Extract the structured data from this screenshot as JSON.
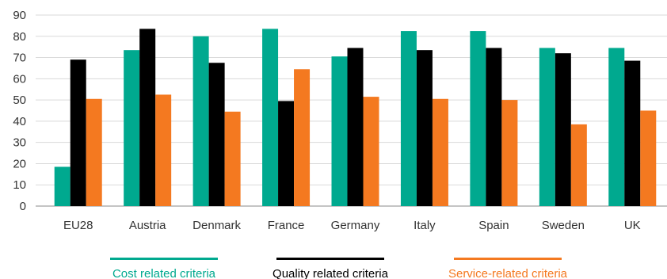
{
  "chart_data": {
    "type": "bar",
    "categories": [
      "EU28",
      "Austria",
      "Denmark",
      "France",
      "Germany",
      "Italy",
      "Spain",
      "Sweden",
      "UK"
    ],
    "series": [
      {
        "name": "Cost related criteria",
        "color": "#00a98f",
        "values": [
          18.5,
          73.5,
          80,
          83.5,
          70.5,
          82.5,
          82.5,
          74.5,
          74.5
        ]
      },
      {
        "name": "Quality related criteria",
        "color": "#000000",
        "values": [
          69,
          83.5,
          67.5,
          49.5,
          74.5,
          73.5,
          74.5,
          72,
          68.5
        ]
      },
      {
        "name": "Service-related criteria",
        "color": "#f47920",
        "values": [
          50.5,
          52.5,
          44.5,
          64.5,
          51.5,
          50.5,
          50,
          38.5,
          45
        ]
      }
    ],
    "yticks": [
      "0",
      "10",
      "20",
      "30",
      "40",
      "50",
      "60",
      "70",
      "80",
      "90"
    ],
    "ylim": [
      0,
      90
    ],
    "grid": true,
    "legend_position": "bottom",
    "title": "",
    "xlabel": "",
    "ylabel": ""
  }
}
